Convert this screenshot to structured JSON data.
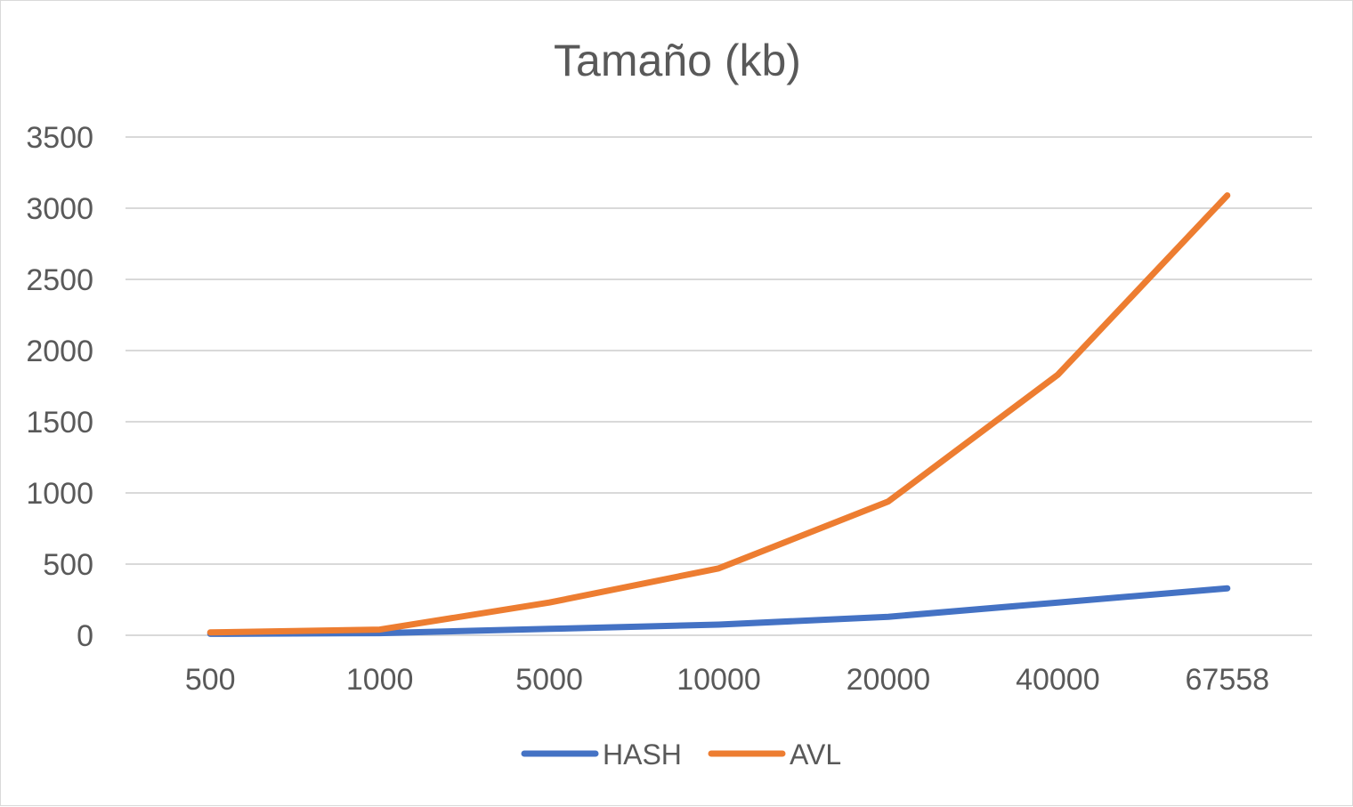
{
  "chart_data": {
    "type": "line",
    "title": "Tamaño (kb)",
    "xlabel": "",
    "ylabel": "",
    "categories": [
      "500",
      "1000",
      "5000",
      "10000",
      "20000",
      "40000",
      "67558"
    ],
    "series": [
      {
        "name": "HASH",
        "color": "#4472C4",
        "values": [
          10,
          15,
          45,
          75,
          130,
          230,
          330
        ]
      },
      {
        "name": "AVL",
        "color": "#ED7D31",
        "values": [
          20,
          40,
          230,
          470,
          940,
          1830,
          3090
        ]
      }
    ],
    "ylim": [
      0,
      3500
    ],
    "yticks": [
      0,
      500,
      1000,
      1500,
      2000,
      2500,
      3000,
      3500
    ],
    "grid": true,
    "legend_position": "bottom",
    "gridline_color": "#d9d9d9",
    "axis_color": "#d9d9d9"
  }
}
